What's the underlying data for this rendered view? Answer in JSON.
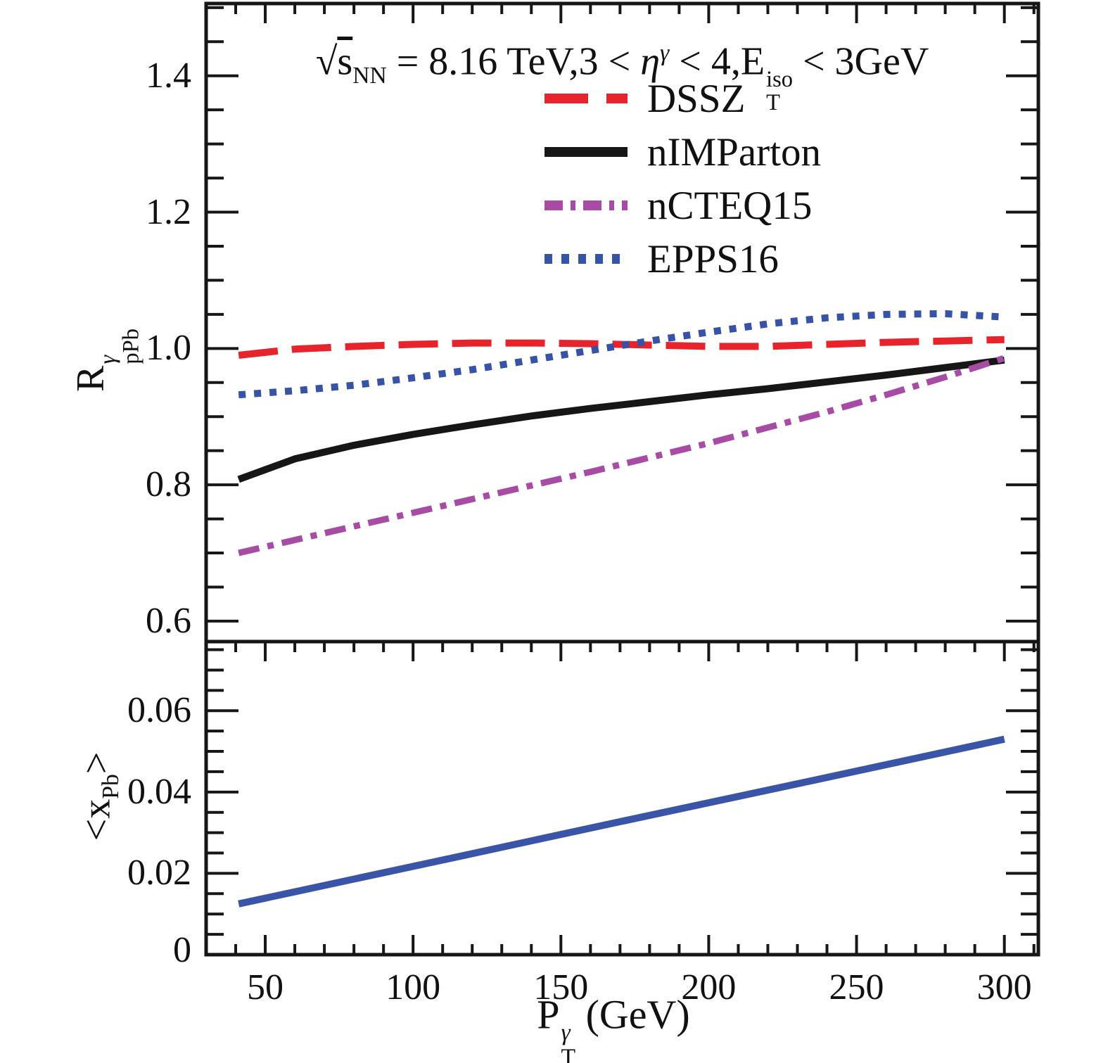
{
  "figure": {
    "background": "#ffffff"
  },
  "title": {
    "full": "√s_NN = 8.16 TeV, 3 < η^γ < 4, E_T^iso < 3 GeV",
    "radical": "√",
    "s": "s",
    "s_sub": "NN",
    "seg1": " = 8.16 TeV,3 < ",
    "eta": "η",
    "eta_sup": "γ",
    "seg2": " < 4,E",
    "e_sup": "iso",
    "e_sub": "T",
    "seg3": " < 3GeV"
  },
  "colors": {
    "frame": "#161616",
    "text": "#111111",
    "dssz_red": "#e8232b",
    "nimparton_black": "#161616",
    "ncteq_purple": "#a74ba4",
    "epps_blue": "#3753a8",
    "xpb_blue": "#3a54a8"
  },
  "axes": {
    "x": {
      "label_base": "P",
      "label_stack_top": "γ",
      "label_stack_bottom": "T",
      "label_rest": " (GeV)",
      "tick_labels": [
        "50",
        "100",
        "150",
        "200",
        "250",
        "300"
      ],
      "tick_values": [
        50,
        100,
        150,
        200,
        250,
        300
      ],
      "minor_step": 10,
      "lim": [
        30,
        311.5
      ]
    },
    "y_top": {
      "label_base": "R",
      "label_stack_top": "γ",
      "label_stack_bottom": "pPb",
      "tick_labels": [
        "1.4",
        "1.2",
        "1.0",
        "0.8",
        "0.6"
      ],
      "tick_values": [
        1.4,
        1.2,
        1.0,
        0.8,
        0.6
      ],
      "minor_step": 0.05,
      "lim": [
        0.57,
        1.506
      ]
    },
    "y_bottom": {
      "label_open": "<",
      "label_base": "x",
      "label_sub": "Pb",
      "label_close": ">",
      "tick_labels": [
        "0.06",
        "0.04",
        "0.02",
        "0"
      ],
      "tick_values": [
        0.06,
        0.04,
        0.02,
        0
      ],
      "minor_step": 0.005,
      "lim": [
        0,
        0.077
      ]
    }
  },
  "chart_data": [
    {
      "type": "line",
      "panel": "top",
      "title": "√s_NN = 8.16 TeV, 3 < η^γ < 4, E_T^iso < 3 GeV",
      "xlabel": "P_T^γ (GeV)",
      "ylabel": "R^γ_pPb",
      "xlim": [
        30,
        311.5
      ],
      "ylim": [
        0.57,
        1.506
      ],
      "grid": false,
      "legend_position": "upper-center-inside",
      "x": [
        41,
        60,
        80,
        100,
        120,
        140,
        160,
        180,
        200,
        220,
        240,
        260,
        280,
        300
      ],
      "series": [
        {
          "name": "DSSZ",
          "color": "#e8232b",
          "style": "dashed",
          "dash": [
            56,
            20
          ],
          "legend_dash": [
            62,
            26
          ],
          "width": 10,
          "y": [
            0.99,
            0.999,
            1.003,
            1.006,
            1.008,
            1.008,
            1.007,
            1.005,
            1.003,
            1.003,
            1.006,
            1.009,
            1.011,
            1.013
          ]
        },
        {
          "name": "nIMParton",
          "color": "#161616",
          "style": "solid",
          "dash": null,
          "legend_dash": null,
          "width": 10,
          "y": [
            0.808,
            0.838,
            0.858,
            0.874,
            0.888,
            0.901,
            0.912,
            0.922,
            0.932,
            0.941,
            0.951,
            0.961,
            0.972,
            0.983
          ]
        },
        {
          "name": "nCTEQ15",
          "color": "#a74ba4",
          "style": "dashdot",
          "dash": [
            30,
            12,
            9,
            12
          ],
          "legend_dash": [
            26,
            11,
            7,
            11
          ],
          "width": 9,
          "y": [
            0.7,
            0.719,
            0.739,
            0.759,
            0.779,
            0.799,
            0.819,
            0.84,
            0.861,
            0.884,
            0.907,
            0.932,
            0.958,
            0.986
          ]
        },
        {
          "name": "EPPS16",
          "color": "#3753a8",
          "style": "dotted",
          "dash": [
            10,
            12
          ],
          "legend_dash": [
            11,
            13
          ],
          "width": 10,
          "y": [
            0.932,
            0.938,
            0.946,
            0.957,
            0.969,
            0.983,
            0.997,
            1.011,
            1.024,
            1.036,
            1.045,
            1.05,
            1.051,
            1.046
          ]
        }
      ]
    },
    {
      "type": "line",
      "panel": "bottom",
      "xlabel": "P_T^γ (GeV)",
      "ylabel": "<x_Pb>",
      "xlim": [
        30,
        311.5
      ],
      "ylim": [
        0,
        0.077
      ],
      "grid": false,
      "x": [
        41,
        105,
        170,
        235,
        300
      ],
      "series": [
        {
          "name": "<x_Pb>",
          "color": "#3a54a8",
          "style": "solid",
          "dash": null,
          "width": 10,
          "y": [
            0.0125,
            0.0225,
            0.0327,
            0.0428,
            0.053
          ]
        }
      ]
    }
  ]
}
